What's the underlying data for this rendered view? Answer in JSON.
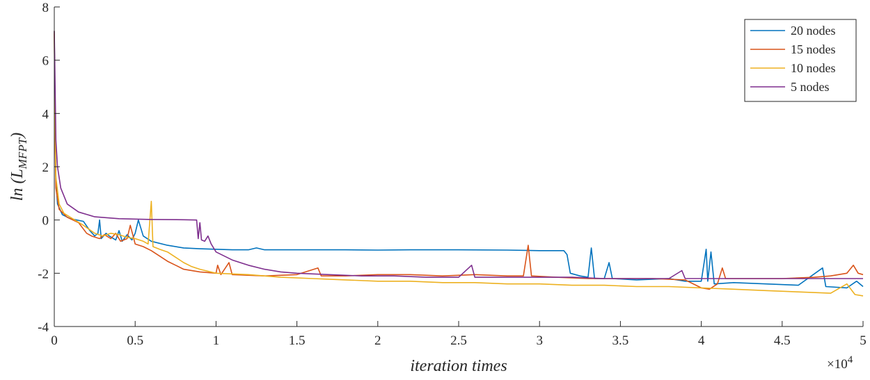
{
  "chart_data": {
    "type": "line",
    "title": "",
    "xlabel": "iteration times",
    "ylabel_main": "ln (L",
    "ylabel_sub": "MFPT",
    "ylabel_close": ")",
    "x_multiplier_base": "×10",
    "x_multiplier_exp": "4",
    "xlim": [
      0,
      5
    ],
    "ylim": [
      -4,
      8
    ],
    "xticks": [
      0,
      0.5,
      1,
      1.5,
      2,
      2.5,
      3,
      3.5,
      4,
      4.5,
      5
    ],
    "xtick_labels": [
      "0",
      "0.5",
      "1",
      "1.5",
      "2",
      "2.5",
      "3",
      "3.5",
      "4",
      "4.5",
      "5"
    ],
    "yticks": [
      -4,
      -2,
      0,
      2,
      4,
      6,
      8
    ],
    "ytick_labels": [
      "-4",
      "-2",
      "0",
      "2",
      "4",
      "6",
      "8"
    ],
    "grid": false,
    "legend_position": "top-right",
    "series": [
      {
        "name": "20 nodes",
        "color": "#0072BD",
        "points": [
          [
            0,
            7.1
          ],
          [
            0.005,
            3.5
          ],
          [
            0.01,
            1.5
          ],
          [
            0.02,
            0.6
          ],
          [
            0.05,
            0.2
          ],
          [
            0.1,
            0.05
          ],
          [
            0.18,
            -0.05
          ],
          [
            0.22,
            -0.4
          ],
          [
            0.25,
            -0.6
          ],
          [
            0.27,
            -0.5
          ],
          [
            0.28,
            0.0
          ],
          [
            0.29,
            -0.7
          ],
          [
            0.32,
            -0.5
          ],
          [
            0.34,
            -0.6
          ],
          [
            0.38,
            -0.75
          ],
          [
            0.4,
            -0.4
          ],
          [
            0.42,
            -0.8
          ],
          [
            0.45,
            -0.55
          ],
          [
            0.48,
            -0.75
          ],
          [
            0.5,
            -0.5
          ],
          [
            0.52,
            0.0
          ],
          [
            0.55,
            -0.6
          ],
          [
            0.6,
            -0.8
          ],
          [
            0.7,
            -0.95
          ],
          [
            0.8,
            -1.05
          ],
          [
            0.9,
            -1.08
          ],
          [
            1.0,
            -1.1
          ],
          [
            1.1,
            -1.12
          ],
          [
            1.2,
            -1.12
          ],
          [
            1.25,
            -1.05
          ],
          [
            1.3,
            -1.12
          ],
          [
            1.5,
            -1.12
          ],
          [
            1.8,
            -1.12
          ],
          [
            2.0,
            -1.13
          ],
          [
            2.2,
            -1.12
          ],
          [
            2.5,
            -1.12
          ],
          [
            2.8,
            -1.13
          ],
          [
            3.0,
            -1.15
          ],
          [
            3.1,
            -1.15
          ],
          [
            3.15,
            -1.15
          ],
          [
            3.17,
            -1.3
          ],
          [
            3.19,
            -2.0
          ],
          [
            3.25,
            -2.1
          ],
          [
            3.3,
            -2.15
          ],
          [
            3.32,
            -1.05
          ],
          [
            3.34,
            -2.2
          ],
          [
            3.4,
            -2.2
          ],
          [
            3.43,
            -1.6
          ],
          [
            3.45,
            -2.2
          ],
          [
            3.6,
            -2.25
          ],
          [
            3.8,
            -2.2
          ],
          [
            3.9,
            -2.3
          ],
          [
            4.0,
            -2.3
          ],
          [
            4.03,
            -1.1
          ],
          [
            4.04,
            -2.3
          ],
          [
            4.06,
            -1.2
          ],
          [
            4.08,
            -2.4
          ],
          [
            4.2,
            -2.35
          ],
          [
            4.4,
            -2.4
          ],
          [
            4.6,
            -2.45
          ],
          [
            4.75,
            -1.8
          ],
          [
            4.77,
            -2.5
          ],
          [
            4.9,
            -2.55
          ],
          [
            4.96,
            -2.3
          ],
          [
            5.0,
            -2.5
          ]
        ]
      },
      {
        "name": "15 nodes",
        "color": "#D95319",
        "points": [
          [
            0,
            7.0
          ],
          [
            0.005,
            3.0
          ],
          [
            0.01,
            1.2
          ],
          [
            0.03,
            0.4
          ],
          [
            0.08,
            0.1
          ],
          [
            0.15,
            -0.1
          ],
          [
            0.2,
            -0.5
          ],
          [
            0.23,
            -0.6
          ],
          [
            0.28,
            -0.7
          ],
          [
            0.31,
            -0.55
          ],
          [
            0.35,
            -0.7
          ],
          [
            0.38,
            -0.5
          ],
          [
            0.41,
            -0.8
          ],
          [
            0.45,
            -0.7
          ],
          [
            0.47,
            -0.2
          ],
          [
            0.5,
            -0.9
          ],
          [
            0.55,
            -1.0
          ],
          [
            0.6,
            -1.15
          ],
          [
            0.65,
            -1.35
          ],
          [
            0.7,
            -1.55
          ],
          [
            0.75,
            -1.7
          ],
          [
            0.8,
            -1.85
          ],
          [
            0.9,
            -1.95
          ],
          [
            1.0,
            -2.0
          ],
          [
            1.01,
            -1.7
          ],
          [
            1.03,
            -2.05
          ],
          [
            1.08,
            -1.6
          ],
          [
            1.1,
            -2.05
          ],
          [
            1.3,
            -2.1
          ],
          [
            1.5,
            -2.05
          ],
          [
            1.63,
            -1.8
          ],
          [
            1.65,
            -2.1
          ],
          [
            1.8,
            -2.1
          ],
          [
            2.0,
            -2.05
          ],
          [
            2.2,
            -2.05
          ],
          [
            2.4,
            -2.1
          ],
          [
            2.6,
            -2.05
          ],
          [
            2.8,
            -2.1
          ],
          [
            2.9,
            -2.1
          ],
          [
            2.93,
            -0.95
          ],
          [
            2.95,
            -2.1
          ],
          [
            3.1,
            -2.15
          ],
          [
            3.3,
            -2.2
          ],
          [
            3.5,
            -2.2
          ],
          [
            3.7,
            -2.2
          ],
          [
            3.9,
            -2.25
          ],
          [
            4.0,
            -2.55
          ],
          [
            4.05,
            -2.6
          ],
          [
            4.1,
            -2.4
          ],
          [
            4.13,
            -1.8
          ],
          [
            4.15,
            -2.2
          ],
          [
            4.3,
            -2.2
          ],
          [
            4.5,
            -2.2
          ],
          [
            4.7,
            -2.15
          ],
          [
            4.8,
            -2.1
          ],
          [
            4.9,
            -2.0
          ],
          [
            4.94,
            -1.7
          ],
          [
            4.97,
            -2.0
          ],
          [
            5.0,
            -2.05
          ]
        ]
      },
      {
        "name": "10 nodes",
        "color": "#EDB120",
        "points": [
          [
            0,
            7.1
          ],
          [
            0.005,
            3.5
          ],
          [
            0.01,
            1.6
          ],
          [
            0.03,
            0.6
          ],
          [
            0.06,
            0.25
          ],
          [
            0.1,
            0.1
          ],
          [
            0.18,
            -0.2
          ],
          [
            0.25,
            -0.5
          ],
          [
            0.3,
            -0.6
          ],
          [
            0.35,
            -0.5
          ],
          [
            0.4,
            -0.55
          ],
          [
            0.45,
            -0.65
          ],
          [
            0.5,
            -0.7
          ],
          [
            0.55,
            -0.8
          ],
          [
            0.58,
            -0.9
          ],
          [
            0.6,
            0.7
          ],
          [
            0.61,
            -1.0
          ],
          [
            0.65,
            -1.1
          ],
          [
            0.7,
            -1.2
          ],
          [
            0.75,
            -1.4
          ],
          [
            0.8,
            -1.6
          ],
          [
            0.85,
            -1.75
          ],
          [
            0.9,
            -1.85
          ],
          [
            1.0,
            -2.0
          ],
          [
            1.2,
            -2.05
          ],
          [
            1.4,
            -2.15
          ],
          [
            1.6,
            -2.2
          ],
          [
            1.8,
            -2.25
          ],
          [
            2.0,
            -2.3
          ],
          [
            2.2,
            -2.3
          ],
          [
            2.4,
            -2.35
          ],
          [
            2.6,
            -2.35
          ],
          [
            2.8,
            -2.4
          ],
          [
            3.0,
            -2.4
          ],
          [
            3.2,
            -2.45
          ],
          [
            3.4,
            -2.45
          ],
          [
            3.6,
            -2.5
          ],
          [
            3.8,
            -2.5
          ],
          [
            4.0,
            -2.55
          ],
          [
            4.2,
            -2.6
          ],
          [
            4.4,
            -2.65
          ],
          [
            4.6,
            -2.7
          ],
          [
            4.8,
            -2.75
          ],
          [
            4.9,
            -2.4
          ],
          [
            4.95,
            -2.8
          ],
          [
            5.0,
            -2.85
          ]
        ]
      },
      {
        "name": "5 nodes",
        "color": "#7E2F8E",
        "points": [
          [
            0,
            7.1
          ],
          [
            0.005,
            5.0
          ],
          [
            0.01,
            3.0
          ],
          [
            0.02,
            2.0
          ],
          [
            0.04,
            1.2
          ],
          [
            0.08,
            0.6
          ],
          [
            0.15,
            0.3
          ],
          [
            0.25,
            0.12
          ],
          [
            0.4,
            0.05
          ],
          [
            0.6,
            0.02
          ],
          [
            0.8,
            0.01
          ],
          [
            0.88,
            0.0
          ],
          [
            0.89,
            -0.7
          ],
          [
            0.9,
            -0.1
          ],
          [
            0.91,
            -0.75
          ],
          [
            0.93,
            -0.8
          ],
          [
            0.95,
            -0.6
          ],
          [
            0.97,
            -0.9
          ],
          [
            1.0,
            -1.2
          ],
          [
            1.1,
            -1.5
          ],
          [
            1.2,
            -1.7
          ],
          [
            1.3,
            -1.85
          ],
          [
            1.4,
            -1.95
          ],
          [
            1.5,
            -2.0
          ],
          [
            1.7,
            -2.05
          ],
          [
            1.9,
            -2.1
          ],
          [
            2.1,
            -2.1
          ],
          [
            2.3,
            -2.15
          ],
          [
            2.5,
            -2.15
          ],
          [
            2.58,
            -1.7
          ],
          [
            2.6,
            -2.15
          ],
          [
            2.8,
            -2.15
          ],
          [
            3.0,
            -2.15
          ],
          [
            3.2,
            -2.15
          ],
          [
            3.4,
            -2.2
          ],
          [
            3.6,
            -2.2
          ],
          [
            3.8,
            -2.2
          ],
          [
            3.88,
            -1.9
          ],
          [
            3.9,
            -2.2
          ],
          [
            4.0,
            -2.2
          ],
          [
            4.2,
            -2.2
          ],
          [
            4.4,
            -2.2
          ],
          [
            4.6,
            -2.2
          ],
          [
            4.8,
            -2.2
          ],
          [
            5.0,
            -2.2
          ]
        ]
      }
    ]
  }
}
